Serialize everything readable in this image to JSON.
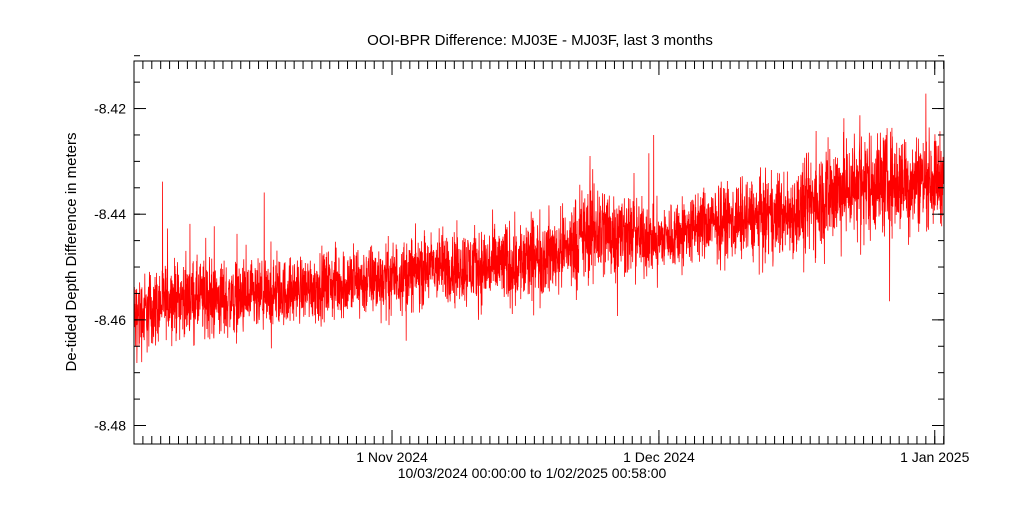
{
  "chart_data": {
    "type": "line",
    "title": "OOI-BPR Difference: MJ03E - MJ03F, last 3 months",
    "ylabel": "De-tided Depth Difference in meters",
    "xlabel_range": "10/03/2024 00:00:00 to  1/02/2025 00:58:00",
    "x_start": "2024-10-03",
    "x_end": "2025-01-02",
    "ylim": [
      -8.4835,
      -8.411
    ],
    "y_ticks": [
      -8.42,
      -8.44,
      -8.46,
      -8.48
    ],
    "y_tick_labels": [
      "-8.42",
      "-8.44",
      "-8.46",
      "-8.48"
    ],
    "x_ticks": [
      {
        "date": "2024-11-01",
        "label": "1 Nov 2024"
      },
      {
        "date": "2024-12-01",
        "label": "1 Dec 2024"
      },
      {
        "date": "2025-01-01",
        "label": "1 Jan 2025"
      }
    ],
    "grid": false,
    "series": [
      {
        "color": "#ff0000",
        "envelope": [
          {
            "date": "2024-10-03",
            "mean": -8.46,
            "amp": 0.012
          },
          {
            "date": "2024-10-07",
            "mean": -8.456,
            "amp": 0.01
          },
          {
            "date": "2024-10-12",
            "mean": -8.456,
            "amp": 0.011
          },
          {
            "date": "2024-10-17",
            "mean": -8.456,
            "amp": 0.01
          },
          {
            "date": "2024-10-22",
            "mean": -8.454,
            "amp": 0.009
          },
          {
            "date": "2024-10-27",
            "mean": -8.453,
            "amp": 0.01
          },
          {
            "date": "2024-11-01",
            "mean": -8.452,
            "amp": 0.01
          },
          {
            "date": "2024-11-06",
            "mean": -8.45,
            "amp": 0.01
          },
          {
            "date": "2024-11-11",
            "mean": -8.45,
            "amp": 0.011
          },
          {
            "date": "2024-11-16",
            "mean": -8.449,
            "amp": 0.012
          },
          {
            "date": "2024-11-20",
            "mean": -8.447,
            "amp": 0.011
          },
          {
            "date": "2024-11-24",
            "mean": -8.443,
            "amp": 0.015
          },
          {
            "date": "2024-11-28",
            "mean": -8.444,
            "amp": 0.011
          },
          {
            "date": "2024-12-01",
            "mean": -8.445,
            "amp": 0.009
          },
          {
            "date": "2024-12-06",
            "mean": -8.442,
            "amp": 0.01
          },
          {
            "date": "2024-12-11",
            "mean": -8.441,
            "amp": 0.011
          },
          {
            "date": "2024-12-16",
            "mean": -8.44,
            "amp": 0.012
          },
          {
            "date": "2024-12-20",
            "mean": -8.436,
            "amp": 0.015
          },
          {
            "date": "2024-12-24",
            "mean": -8.434,
            "amp": 0.015
          },
          {
            "date": "2024-12-28",
            "mean": -8.434,
            "amp": 0.014
          },
          {
            "date": "2025-01-02",
            "mean": -8.433,
            "amp": 0.012
          }
        ]
      }
    ]
  }
}
